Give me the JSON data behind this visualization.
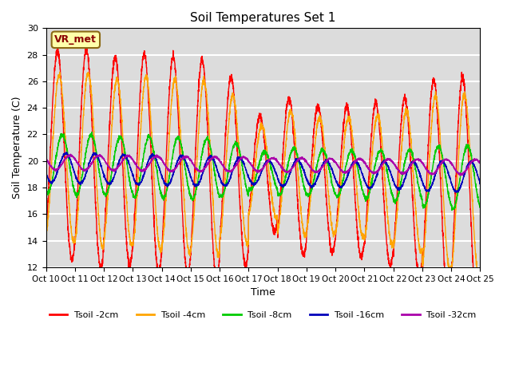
{
  "title": "Soil Temperatures Set 1",
  "xlabel": "Time",
  "ylabel": "Soil Temperature (C)",
  "ylim": [
    12,
    30
  ],
  "xlim": [
    0,
    360
  ],
  "annotation": "VR_met",
  "annotation_box_color": "#FFFFAA",
  "annotation_text_color": "#8B0000",
  "background_color": "#DCDCDC",
  "grid_color": "white",
  "series": [
    {
      "label": "Tsoil -2cm",
      "color": "#FF0000"
    },
    {
      "label": "Tsoil -4cm",
      "color": "#FFA500"
    },
    {
      "label": "Tsoil -8cm",
      "color": "#00CC00"
    },
    {
      "label": "Tsoil -16cm",
      "color": "#0000BB"
    },
    {
      "label": "Tsoil -32cm",
      "color": "#AA00AA"
    }
  ],
  "xtick_labels": [
    "Oct 10",
    "Oct 11",
    "Oct 12",
    "Oct 13",
    "Oct 14",
    "Oct 15",
    "Oct 16",
    "Oct 17",
    "Oct 18",
    "Oct 19",
    "Oct 20",
    "Oct 21",
    "Oct 22",
    "Oct 23",
    "Oct 24",
    "Oct 25"
  ],
  "xtick_positions": [
    0,
    24,
    48,
    72,
    96,
    120,
    144,
    168,
    192,
    216,
    240,
    264,
    288,
    312,
    336,
    360
  ],
  "ytick_values": [
    12,
    14,
    16,
    18,
    20,
    22,
    24,
    26,
    28,
    30
  ]
}
